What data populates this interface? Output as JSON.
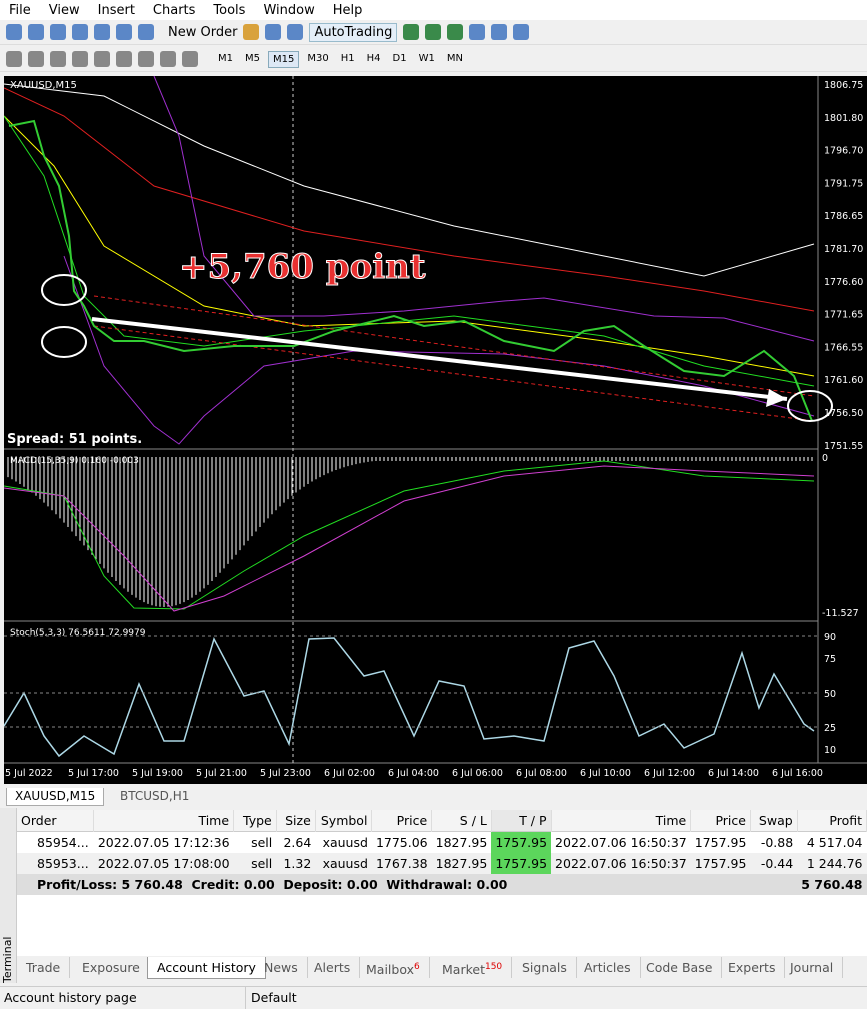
{
  "menu": [
    "File",
    "View",
    "Insert",
    "Charts",
    "Tools",
    "Window",
    "Help"
  ],
  "toolbar": {
    "new_order": "New Order",
    "autotrading": "AutoTrading"
  },
  "timeframes": [
    "M1",
    "M5",
    "M15",
    "M30",
    "H1",
    "H4",
    "D1",
    "W1",
    "MN"
  ],
  "chart": {
    "symbol": "XAUUSD,M15",
    "annotation": "+5,760 point",
    "spread": "Spread: 51 points.",
    "price_axis": [
      "1806.75",
      "1801.80",
      "1796.70",
      "1791.75",
      "1786.65",
      "1781.70",
      "1776.60",
      "1771.65",
      "1766.55",
      "1761.60",
      "1756.50",
      "1751.55"
    ],
    "macd_label": "MACD(15,35,9) 0.160 -0.003",
    "macd_axis": [
      "0",
      "-11.527"
    ],
    "stoch_label": "Stoch(5,3,3) 76.5611 72.9979",
    "stoch_axis": [
      "90",
      "75",
      "50",
      "25",
      "10"
    ],
    "time_axis": [
      "5 Jul 2022",
      "5 Jul 17:00",
      "5 Jul 19:00",
      "5 Jul 21:00",
      "5 Jul 23:00",
      "6 Jul 02:00",
      "6 Jul 04:00",
      "6 Jul 06:00",
      "6 Jul 08:00",
      "6 Jul 10:00",
      "6 Jul 12:00",
      "6 Jul 14:00",
      "6 Jul 16:00"
    ]
  },
  "chart_tabs": [
    "XAUUSD,M15",
    "BTCUSD,H1"
  ],
  "terminal": {
    "title": "Terminal",
    "columns": [
      "Order",
      "Time",
      "Type",
      "Size",
      "Symbol",
      "Price",
      "S / L",
      "T / P",
      "Time",
      "Price",
      "Swap",
      "Profit"
    ],
    "rows": [
      [
        "85954...",
        "2022.07.05 17:12:36",
        "sell",
        "2.64",
        "xauusd",
        "1775.06",
        "1827.95",
        "1757.95",
        "2022.07.06 16:50:37",
        "1757.95",
        "-0.88",
        "4 517.04"
      ],
      [
        "85953...",
        "2022.07.05 17:08:00",
        "sell",
        "1.32",
        "xauusd",
        "1767.38",
        "1827.95",
        "1757.95",
        "2022.07.06 16:50:37",
        "1757.95",
        "-0.44",
        "1 244.76"
      ]
    ],
    "summary": "Profit/Loss: 5 760.48  Credit: 0.00  Deposit: 0.00  Withdrawal: 0.00",
    "summary_total": "5 760.48",
    "tabs": [
      "Trade",
      "Exposure",
      "Account History",
      "News",
      "Alerts",
      "Mailbox",
      "Market",
      "Signals",
      "Articles",
      "Code Base",
      "Experts",
      "Journal"
    ],
    "badges": {
      "mailbox": "6",
      "market": "150"
    }
  },
  "status": {
    "left": "Account history page",
    "right": "Default"
  }
}
